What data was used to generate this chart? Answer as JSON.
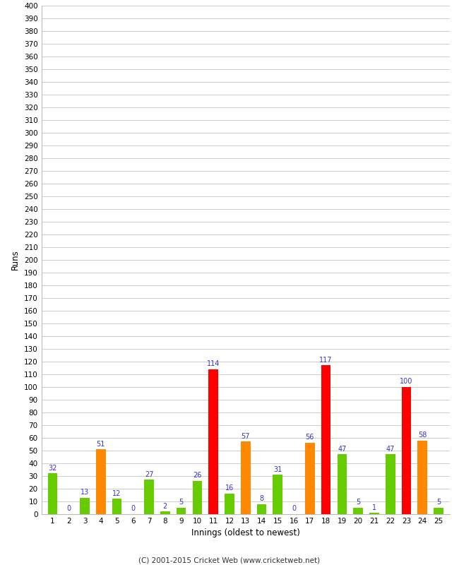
{
  "innings": [
    1,
    2,
    3,
    4,
    5,
    6,
    7,
    8,
    9,
    10,
    11,
    12,
    13,
    14,
    15,
    16,
    17,
    18,
    19,
    20,
    21,
    22,
    23,
    24,
    25
  ],
  "values": [
    32,
    0,
    13,
    51,
    12,
    0,
    27,
    2,
    5,
    26,
    114,
    16,
    57,
    8,
    31,
    0,
    56,
    117,
    47,
    5,
    1,
    47,
    100,
    58,
    5
  ],
  "colors": [
    "#66cc00",
    "#66cc00",
    "#66cc00",
    "#ff8800",
    "#66cc00",
    "#66cc00",
    "#66cc00",
    "#66cc00",
    "#66cc00",
    "#66cc00",
    "#ff0000",
    "#66cc00",
    "#ff8800",
    "#66cc00",
    "#66cc00",
    "#66cc00",
    "#ff8800",
    "#ff0000",
    "#66cc00",
    "#66cc00",
    "#66cc00",
    "#66cc00",
    "#ff0000",
    "#ff8800",
    "#66cc00"
  ],
  "xlabel": "Innings (oldest to newest)",
  "ylabel": "Runs",
  "ylim": [
    0,
    400
  ],
  "yticks": [
    0,
    10,
    20,
    30,
    40,
    50,
    60,
    70,
    80,
    90,
    100,
    110,
    120,
    130,
    140,
    150,
    160,
    170,
    180,
    190,
    200,
    210,
    220,
    230,
    240,
    250,
    260,
    270,
    280,
    290,
    300,
    310,
    320,
    330,
    340,
    350,
    360,
    370,
    380,
    390,
    400
  ],
  "annotation_color": "#3333cc",
  "background_color": "#ffffff",
  "grid_color": "#cccccc",
  "footer": "(C) 2001-2015 Cricket Web (www.cricketweb.net)",
  "bar_width": 0.6
}
